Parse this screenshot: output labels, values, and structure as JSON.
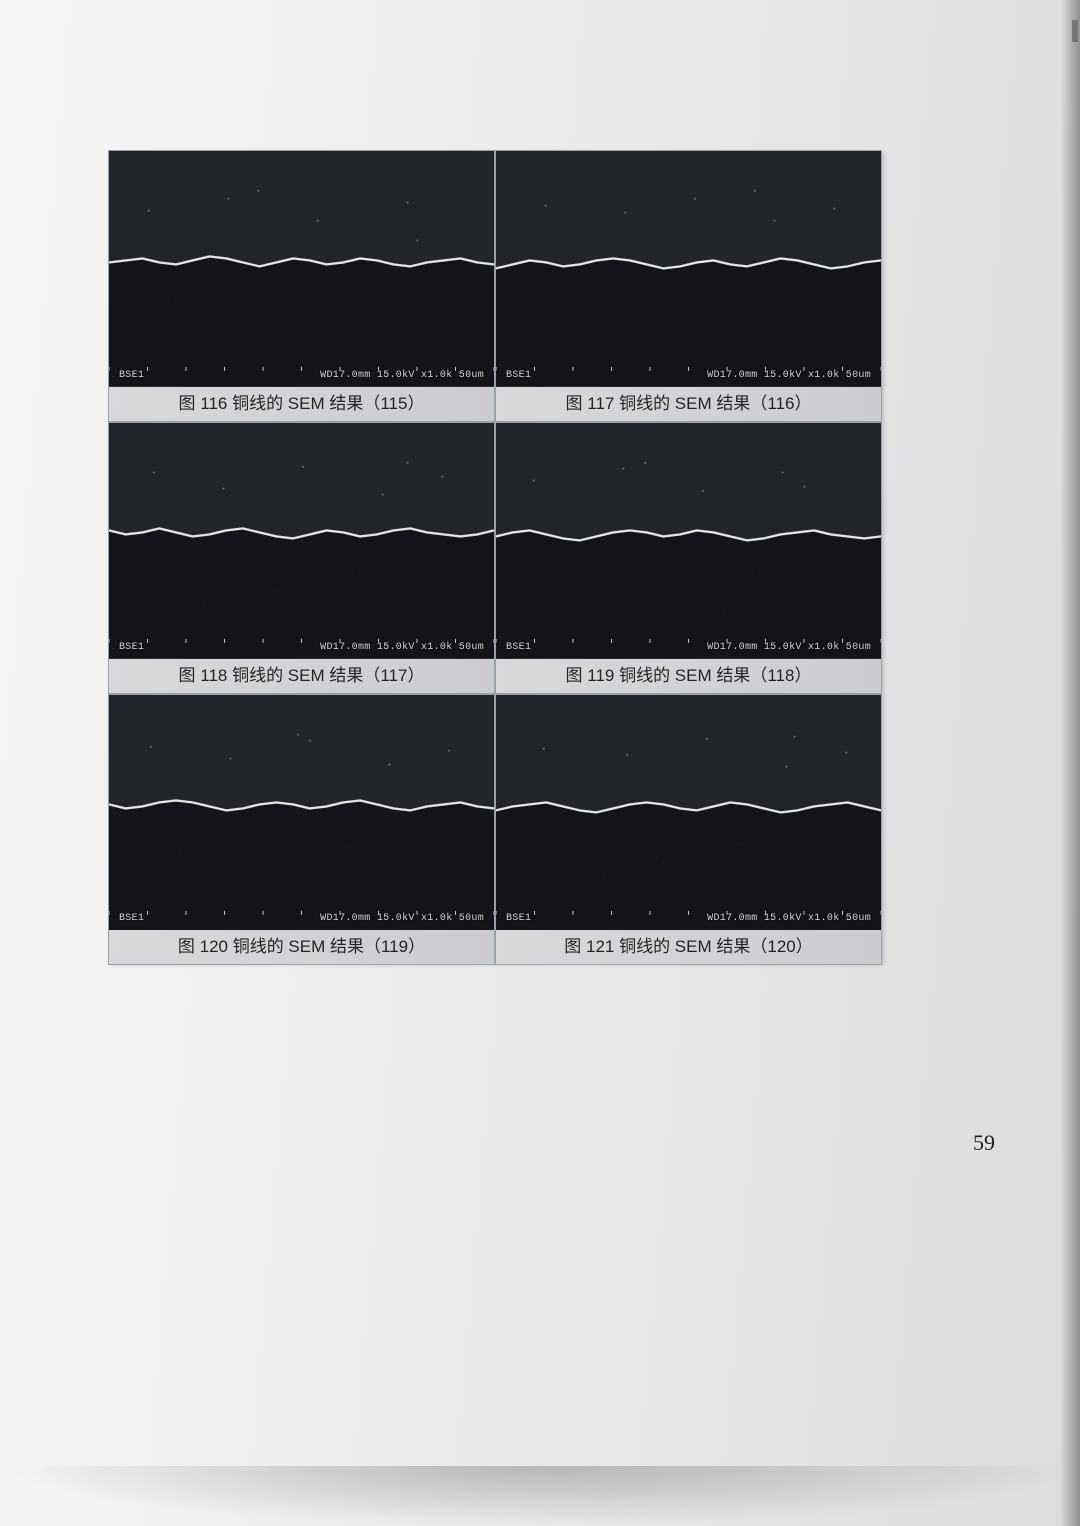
{
  "page": {
    "number": "59"
  },
  "sem_style": {
    "image_bg_top": "#2b2f33",
    "image_bg_bottom": "#0f1214",
    "rough_line_color": "#e2e2e2",
    "speckle_color": "#9da1a5",
    "overlay_text_color": "#d6d6d6"
  },
  "panels": [
    {
      "overlay_left": "BSE1",
      "overlay_right": "WD17.0mm 15.0kV x1.0k  50um",
      "caption": "图 116 铜线的 SEM 结果（115）",
      "profile": [
        112,
        110,
        108,
        112,
        114,
        110,
        106,
        108,
        112,
        116,
        112,
        108,
        110,
        114,
        112,
        108,
        110,
        114,
        116,
        112,
        110,
        108,
        112,
        114
      ],
      "speckles": [
        [
          40,
          60
        ],
        [
          120,
          48
        ],
        [
          210,
          70
        ],
        [
          300,
          52
        ],
        [
          60,
          150
        ],
        [
          180,
          160
        ],
        [
          260,
          145
        ],
        [
          330,
          168
        ],
        [
          90,
          190
        ],
        [
          150,
          40
        ],
        [
          250,
          180
        ],
        [
          310,
          90
        ]
      ]
    },
    {
      "overlay_left": "BSE1",
      "overlay_right": "WD17.0mm 15.0kV x1.0k  50um",
      "caption": "图 117 铜线的 SEM 结果（116）",
      "profile": [
        118,
        114,
        110,
        112,
        116,
        114,
        110,
        108,
        110,
        114,
        118,
        116,
        112,
        110,
        114,
        116,
        112,
        108,
        110,
        114,
        118,
        116,
        112,
        110
      ],
      "speckles": [
        [
          50,
          55
        ],
        [
          130,
          62
        ],
        [
          200,
          48
        ],
        [
          280,
          70
        ],
        [
          340,
          58
        ],
        [
          80,
          150
        ],
        [
          170,
          170
        ],
        [
          240,
          158
        ],
        [
          320,
          172
        ],
        [
          110,
          188
        ],
        [
          260,
          40
        ],
        [
          30,
          180
        ]
      ]
    },
    {
      "overlay_left": "BSE1",
      "overlay_right": "WD17.0mm 15.0kV x1.0k  50um",
      "caption": "图 118 铜线的 SEM 结果（117）",
      "profile": [
        108,
        112,
        110,
        106,
        110,
        114,
        112,
        108,
        106,
        110,
        114,
        116,
        112,
        108,
        110,
        114,
        112,
        108,
        106,
        110,
        112,
        114,
        112,
        108
      ],
      "speckles": [
        [
          45,
          50
        ],
        [
          115,
          66
        ],
        [
          195,
          44
        ],
        [
          275,
          72
        ],
        [
          335,
          54
        ],
        [
          70,
          158
        ],
        [
          165,
          168
        ],
        [
          245,
          150
        ],
        [
          325,
          176
        ],
        [
          95,
          184
        ],
        [
          205,
          186
        ],
        [
          300,
          40
        ]
      ]
    },
    {
      "overlay_left": "BSE1",
      "overlay_right": "WD17.0mm 15.0kV x1.0k  50um",
      "caption": "图 119 铜线的 SEM 结果（118）",
      "profile": [
        114,
        110,
        108,
        112,
        116,
        118,
        114,
        110,
        108,
        110,
        114,
        112,
        108,
        110,
        114,
        118,
        116,
        112,
        110,
        108,
        112,
        114,
        116,
        114
      ],
      "speckles": [
        [
          38,
          58
        ],
        [
          128,
          46
        ],
        [
          208,
          68
        ],
        [
          288,
          50
        ],
        [
          58,
          156
        ],
        [
          178,
          166
        ],
        [
          258,
          148
        ],
        [
          338,
          170
        ],
        [
          98,
          186
        ],
        [
          150,
          40
        ],
        [
          230,
          190
        ],
        [
          310,
          64
        ]
      ]
    },
    {
      "overlay_left": "BSE1",
      "overlay_right": "WD17.0mm 15.0kV x1.0k  50um",
      "caption": "图 120 铜线的 SEM 结果（119）",
      "profile": [
        110,
        114,
        112,
        108,
        106,
        108,
        112,
        116,
        114,
        110,
        108,
        110,
        114,
        112,
        108,
        106,
        110,
        114,
        116,
        112,
        110,
        108,
        112,
        114
      ],
      "speckles": [
        [
          42,
          52
        ],
        [
          122,
          64
        ],
        [
          202,
          46
        ],
        [
          282,
          70
        ],
        [
          342,
          56
        ],
        [
          72,
          160
        ],
        [
          162,
          170
        ],
        [
          242,
          152
        ],
        [
          322,
          174
        ],
        [
          102,
          188
        ],
        [
          190,
          40
        ],
        [
          270,
          182
        ]
      ]
    },
    {
      "overlay_left": "BSE1",
      "overlay_right": "WD17.0mm 15.0kV x1.0k  50um",
      "caption": "图 121 铜线的 SEM 结果（120）",
      "profile": [
        116,
        112,
        110,
        108,
        112,
        116,
        118,
        114,
        110,
        108,
        110,
        114,
        116,
        112,
        108,
        110,
        114,
        118,
        116,
        112,
        110,
        108,
        112,
        116
      ],
      "speckles": [
        [
          48,
          54
        ],
        [
          132,
          60
        ],
        [
          212,
          44
        ],
        [
          292,
          72
        ],
        [
          352,
          58
        ],
        [
          78,
          158
        ],
        [
          168,
          168
        ],
        [
          248,
          150
        ],
        [
          328,
          176
        ],
        [
          108,
          184
        ],
        [
          220,
          186
        ],
        [
          300,
          42
        ]
      ]
    }
  ]
}
